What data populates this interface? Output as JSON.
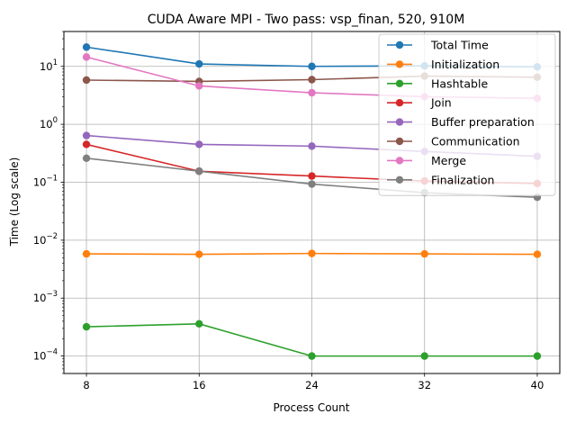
{
  "chart_data": {
    "type": "line",
    "title": "CUDA Aware MPI - Two pass: vsp_finan, 520, 910M",
    "xlabel": "Process Count",
    "ylabel": "Time (Log scale)",
    "y_scale": "log",
    "x": [
      8,
      16,
      24,
      32,
      40
    ],
    "xlim": [
      6.4,
      41.6
    ],
    "ylim": [
      5e-05,
      40
    ],
    "y_ticks": [
      {
        "value": 0.0001,
        "base": "10",
        "exp": "−4"
      },
      {
        "value": 0.001,
        "base": "10",
        "exp": "−3"
      },
      {
        "value": 0.01,
        "base": "10",
        "exp": "−2"
      },
      {
        "value": 0.1,
        "base": "10",
        "exp": "−1"
      },
      {
        "value": 1,
        "base": "10",
        "exp": "0"
      },
      {
        "value": 10,
        "base": "10",
        "exp": "1"
      }
    ],
    "grid": true,
    "legend_position": "top-right",
    "series": [
      {
        "name": "Total Time",
        "color": "#1f77b4",
        "values": [
          21.5,
          11.0,
          10.0,
          10.2,
          9.8
        ]
      },
      {
        "name": "Initialization",
        "color": "#ff7f0e",
        "values": [
          0.0058,
          0.0057,
          0.0059,
          0.0058,
          0.0057
        ]
      },
      {
        "name": "Hashtable",
        "color": "#2ca02c",
        "values": [
          0.00032,
          0.00036,
          0.0001,
          0.0001,
          0.0001
        ]
      },
      {
        "name": "Join",
        "color": "#d62728",
        "values": [
          0.45,
          0.155,
          0.128,
          0.105,
          0.095
        ]
      },
      {
        "name": "Buffer preparation",
        "color": "#9467bd",
        "values": [
          0.64,
          0.45,
          0.42,
          0.34,
          0.28
        ]
      },
      {
        "name": "Communication",
        "color": "#8c564b",
        "values": [
          5.8,
          5.5,
          5.9,
          6.8,
          6.5
        ]
      },
      {
        "name": "Merge",
        "color": "#e377c2",
        "values": [
          14.5,
          4.6,
          3.5,
          3.0,
          2.8
        ]
      },
      {
        "name": "Finalization",
        "color": "#7f7f7f",
        "values": [
          0.26,
          0.155,
          0.093,
          0.066,
          0.055
        ]
      }
    ]
  }
}
